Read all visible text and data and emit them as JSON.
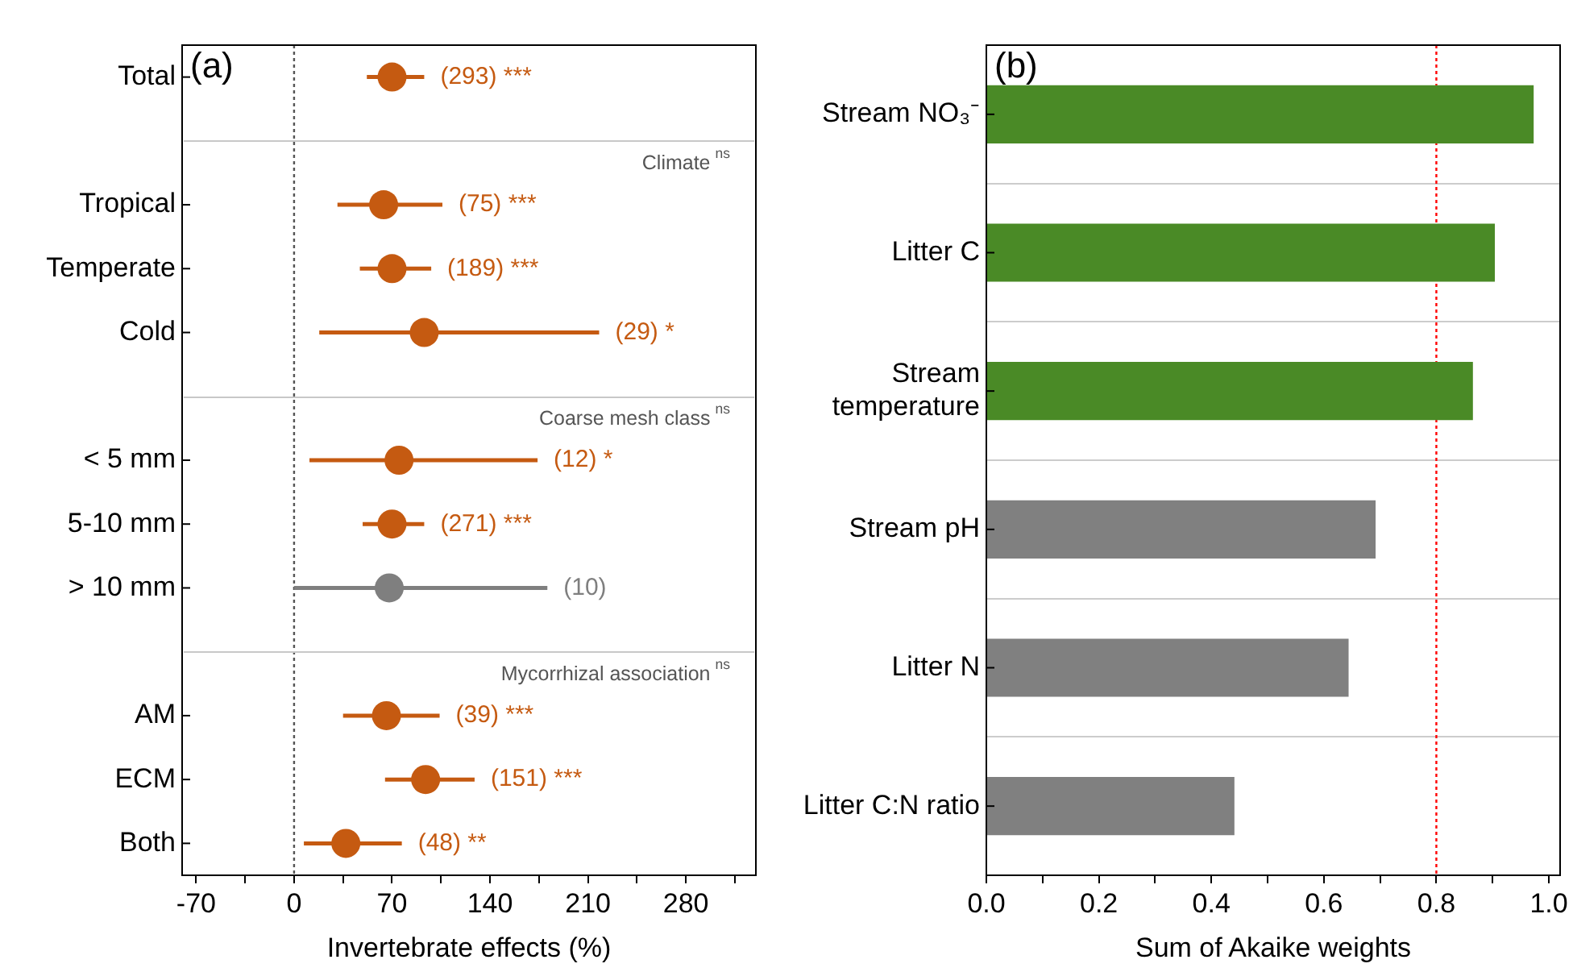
{
  "chart_data": [
    {
      "type": "scatter",
      "orientation": "horizontal",
      "marker": "circle",
      "categories": [
        "Total",
        null,
        "Tropical",
        "Temperate",
        "Cold",
        null,
        "< 5 mm",
        "5-10 mm",
        "> 10 mm",
        null,
        "AM",
        "ECM",
        "Both"
      ],
      "values": [
        70,
        null,
        64,
        70,
        93,
        null,
        75,
        70,
        68,
        null,
        66,
        94,
        37
      ],
      "errors": [
        [
          52,
          93
        ],
        null,
        [
          31,
          106
        ],
        [
          47,
          98
        ],
        [
          18,
          218
        ],
        null,
        [
          11,
          174
        ],
        [
          49,
          93
        ],
        [
          0,
          181
        ],
        null,
        [
          35,
          104
        ],
        [
          65,
          129
        ],
        [
          7,
          77
        ]
      ],
      "colors": [
        "#c55a11",
        "#c55a11",
        "#c55a11",
        "#c55a11",
        "#c55a11",
        "#c55a11",
        "#c55a11",
        "#c55a11",
        "#7f7f7f",
        "#c55a11",
        "#c55a11",
        "#c55a11",
        "#c55a11"
      ],
      "xlim": [
        -80,
        330
      ],
      "xticks": [
        -70,
        {
          "value": -35,
          "label": null
        },
        0,
        {
          "value": 35,
          "label": null
        },
        70,
        {
          "value": 105,
          "label": null
        },
        140,
        {
          "value": 175,
          "label": null
        },
        210,
        {
          "value": 245,
          "label": null
        },
        280,
        {
          "value": 315,
          "label": null
        }
      ],
      "xlabel": "Invertebrate effects (%)",
      "ref_lines": [
        {
          "axis": "x",
          "value": 0,
          "color": "#555555",
          "line_style": "dotted"
        }
      ],
      "annotations": [
        "(a)",
        "Climate$^{ns}$",
        "Coarse mesh class$^{ns}$",
        "Mycorrhizal association$^{ns}$",
        {
          "text": "(293) ***",
          "x": 93,
          "y": "Total"
        },
        {
          "text": "(75) ***",
          "x": 106,
          "y": "Tropical"
        },
        {
          "text": "(189) ***",
          "x": 98,
          "y": "Temperate"
        },
        {
          "text": "(29) *",
          "x": 218,
          "y": "Cold"
        },
        {
          "text": "(12) *",
          "x": 174,
          "y": "< 5 mm"
        },
        {
          "text": "(271) ***",
          "x": 93,
          "y": "5-10 mm"
        },
        {
          "text": "(10)",
          "x": 181,
          "y": "> 10 mm"
        },
        {
          "text": "(39) ***",
          "x": 104,
          "y": "AM"
        },
        {
          "text": "(151) ***",
          "x": 129,
          "y": "ECM"
        },
        {
          "text": "(48) **",
          "x": 77,
          "y": "Both"
        }
      ]
    },
    {
      "type": "bar",
      "orientation": "horizontal",
      "categories": [
        "Stream NO₃⁻",
        "Litter C",
        "Stream temperature",
        "Stream pH",
        "Litter N",
        "Litter C:N ratio"
      ],
      "values": [
        0.973,
        0.904,
        0.865,
        0.692,
        0.644,
        0.441
      ],
      "colors": [
        "#4a8a26",
        "#4a8a26",
        "#4a8a26",
        "#808080",
        "#808080",
        "#808080"
      ],
      "xlim": [
        0,
        1.02
      ],
      "xticks": [
        {
          "value": 0,
          "label": "0.0"
        },
        {
          "value": 0.1,
          "label": null
        },
        {
          "value": 0.2,
          "label": "0.2"
        },
        {
          "value": 0.3,
          "label": null
        },
        {
          "value": 0.4,
          "label": "0.4"
        },
        {
          "value": 0.5,
          "label": null
        },
        {
          "value": 0.6,
          "label": "0.6"
        },
        {
          "value": 0.7,
          "label": null
        },
        {
          "value": 0.8,
          "label": "0.8"
        },
        {
          "value": 0.9,
          "label": null
        },
        {
          "value": 1,
          "label": "1.0"
        }
      ],
      "xlabel": "Sum of Akaike weights",
      "grid": "y",
      "ref_lines": [
        {
          "axis": "x",
          "value": 0.8,
          "color": "#ff0000",
          "line_style": "dotted"
        }
      ],
      "annotations": [
        "(b)"
      ]
    }
  ]
}
